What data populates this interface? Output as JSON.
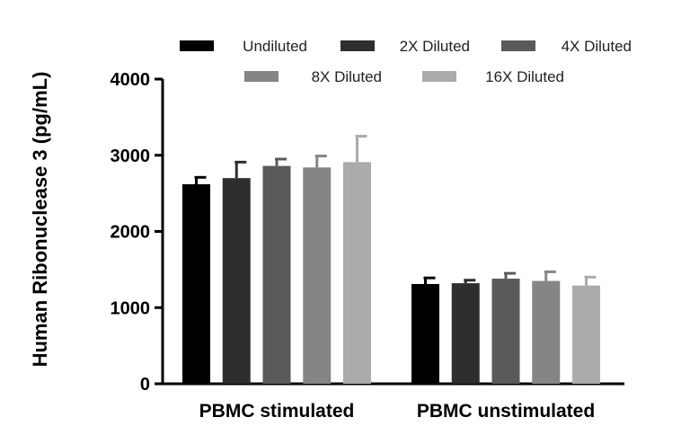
{
  "chart_data": {
    "type": "bar",
    "ylabel": "Human Ribonuclease 3 (pg/mL)",
    "xlabel": "",
    "ylim": [
      0,
      4000
    ],
    "yticks": [
      0,
      1000,
      2000,
      3000,
      4000
    ],
    "categories": [
      "PBMC stimulated",
      "PBMC unstimulated"
    ],
    "legend_position": "top",
    "series": [
      {
        "name": "Undiluted",
        "color": "#000000",
        "values": [
          2620,
          1310
        ],
        "errors": [
          90,
          80
        ]
      },
      {
        "name": "2X Diluted",
        "color": "#2e2e2e",
        "values": [
          2700,
          1320
        ],
        "errors": [
          210,
          40
        ]
      },
      {
        "name": "4X Diluted",
        "color": "#5a5a5a",
        "values": [
          2860,
          1380
        ],
        "errors": [
          90,
          70
        ]
      },
      {
        "name": "8X Diluted",
        "color": "#858585",
        "values": [
          2840,
          1350
        ],
        "errors": [
          150,
          120
        ]
      },
      {
        "name": "16X Diluted",
        "color": "#ababab",
        "values": [
          2910,
          1290
        ],
        "errors": [
          340,
          110
        ]
      }
    ]
  }
}
